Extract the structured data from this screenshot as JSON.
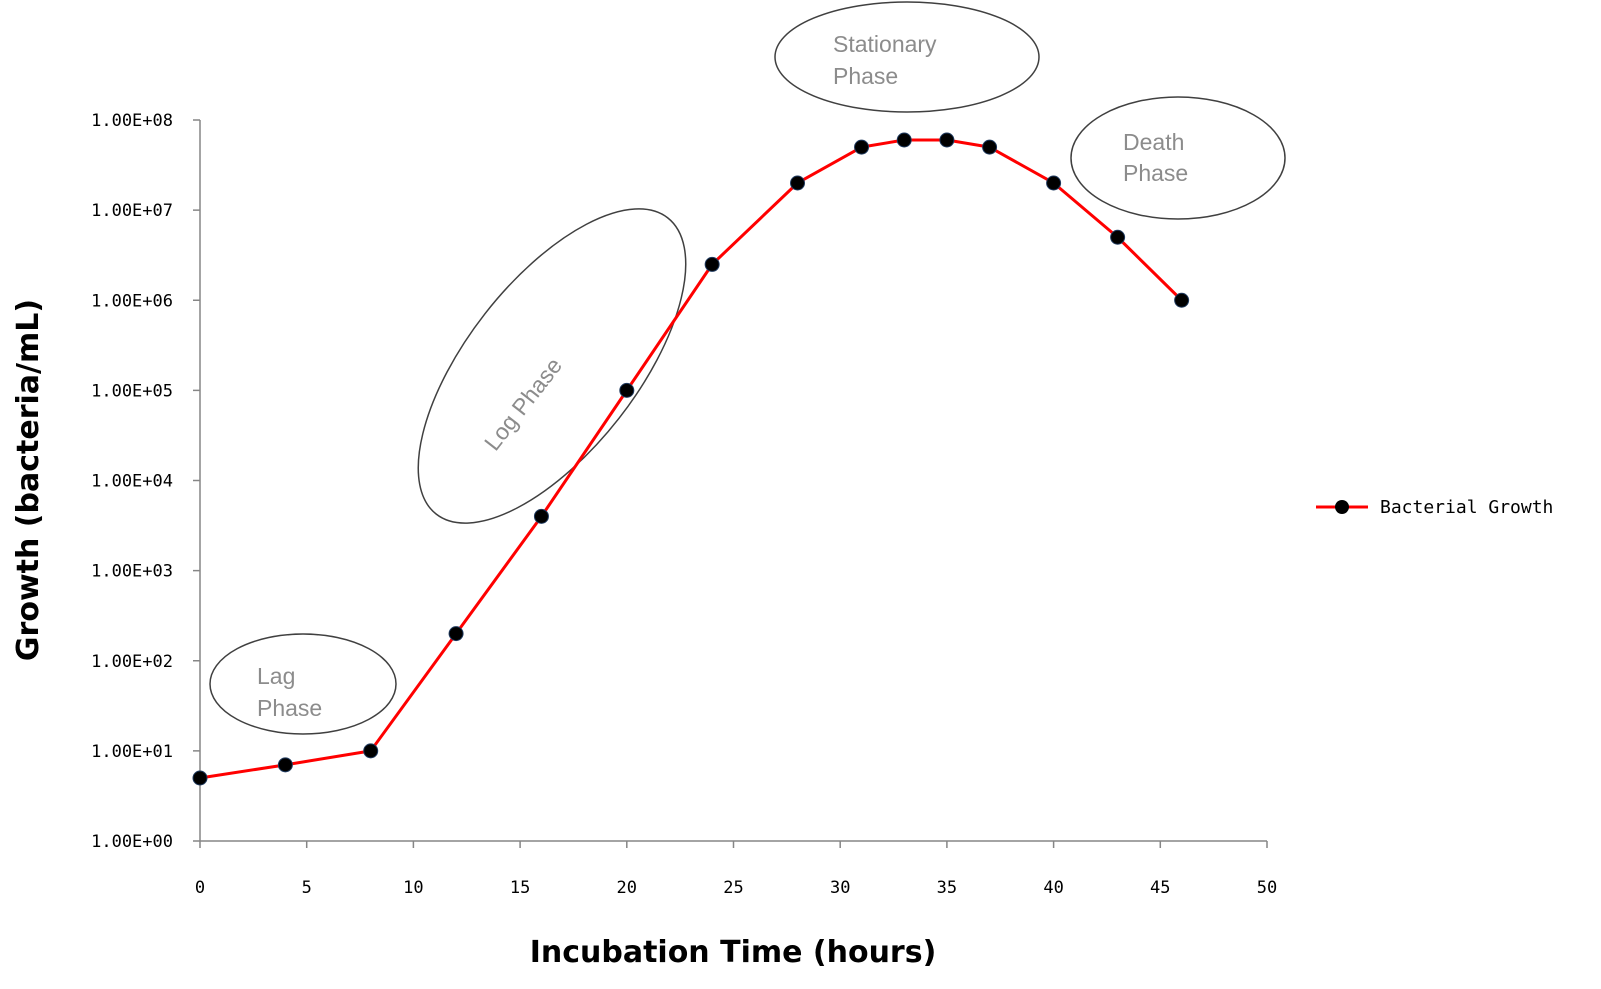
{
  "chart_data": {
    "type": "line",
    "title": "",
    "xlabel": "Incubation Time (hours)",
    "ylabel": "Growth (bacteria/mL)",
    "xlim": [
      0,
      50
    ],
    "x_ticks": [
      "0",
      "5",
      "10",
      "15",
      "20",
      "25",
      "30",
      "35",
      "40",
      "45",
      "50"
    ],
    "y_scale": "log",
    "ylim": [
      1,
      100000000
    ],
    "y_ticks": [
      "1.00E+00",
      "1.00E+01",
      "1.00E+02",
      "1.00E+03",
      "1.00E+04",
      "1.00E+05",
      "1.00E+06",
      "1.00E+07",
      "1.00E+08"
    ],
    "grid": false,
    "legend_position": "right",
    "series": [
      {
        "name": "Bacterial Growth",
        "color": "#ff0000",
        "marker_color": "#000000",
        "x": [
          0,
          4,
          8,
          12,
          16,
          20,
          24,
          28,
          31,
          33,
          35,
          37,
          40,
          43,
          46
        ],
        "y": [
          5,
          7,
          10,
          200,
          4000,
          100000,
          2500000,
          20000000,
          50000000,
          60000000,
          60000000,
          50000000,
          20000000,
          5000000,
          1000000
        ]
      }
    ],
    "annotations": [
      {
        "text": [
          "Lag",
          "Phase"
        ]
      },
      {
        "text": [
          "Log Phase"
        ]
      },
      {
        "text": [
          "Stationary",
          "Phase"
        ]
      },
      {
        "text": [
          "Death",
          "Phase"
        ]
      }
    ]
  }
}
